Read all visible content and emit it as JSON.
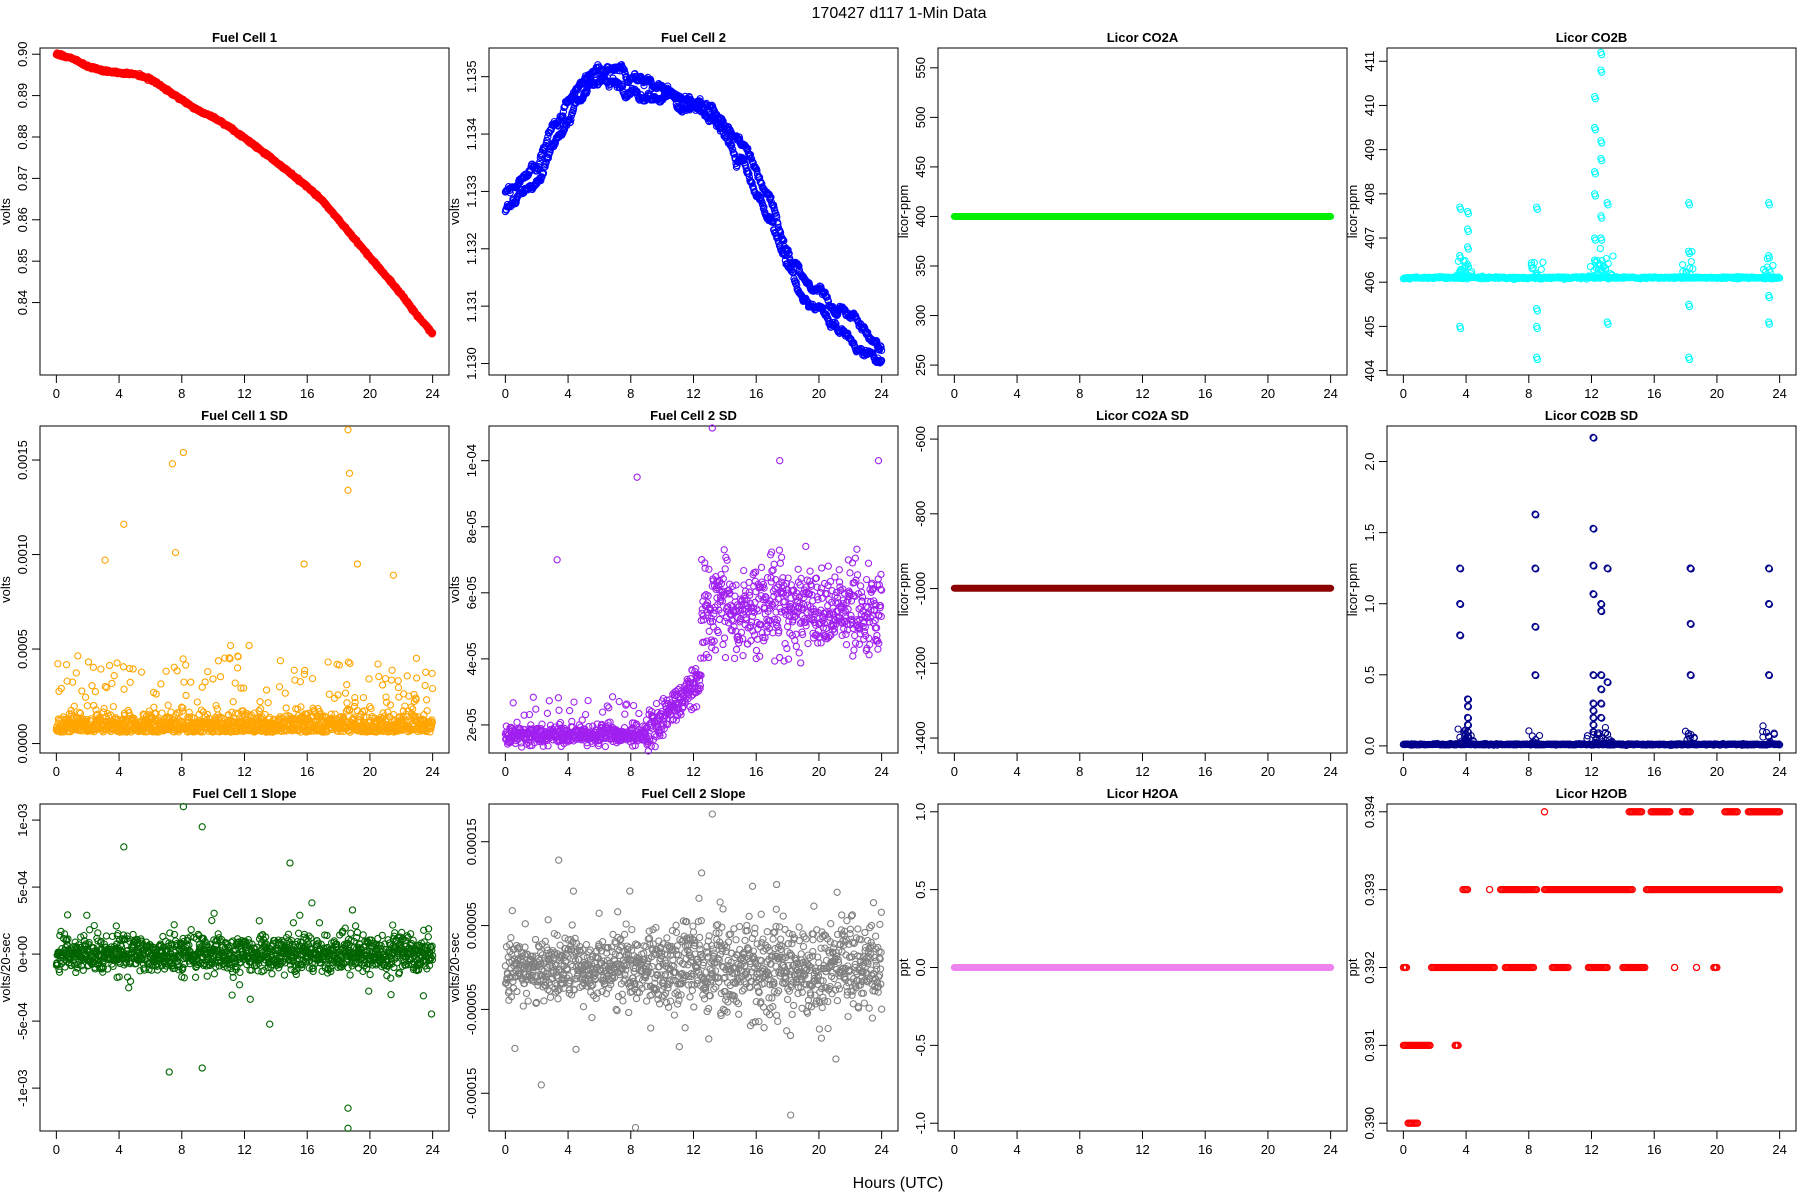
{
  "title": "170427   d117   1-Min Data",
  "xlabel": "Hours (UTC)",
  "chart_data": [
    {
      "type": "line",
      "title": "Fuel Cell 1",
      "ylabel": "volts",
      "color": "#ff0000",
      "xlim": [
        0,
        24
      ],
      "ylim": [
        0.8225,
        0.9015
      ],
      "xticks": [
        0,
        4,
        8,
        12,
        16,
        20,
        24
      ],
      "yticks": [
        0.84,
        0.85,
        0.86,
        0.87,
        0.88,
        0.89,
        0.9
      ],
      "ytick_labels": [
        "0.84",
        "0.85",
        "0.86",
        "0.87",
        "0.88",
        "0.89",
        "0.90"
      ],
      "series": [
        {
          "x": [
            0,
            1,
            2,
            3,
            4,
            5,
            6,
            7,
            8,
            9,
            10,
            11,
            12,
            13,
            14,
            15,
            16,
            17,
            18,
            19,
            20,
            21,
            22,
            23,
            24
          ],
          "y": [
            0.9,
            0.899,
            0.897,
            0.896,
            0.8955,
            0.8952,
            0.894,
            0.8915,
            0.889,
            0.8865,
            0.8848,
            0.8825,
            0.8797,
            0.877,
            0.874,
            0.871,
            0.868,
            0.8645,
            0.86,
            0.8555,
            0.851,
            0.8465,
            0.842,
            0.837,
            0.8325
          ]
        }
      ]
    },
    {
      "type": "line",
      "title": "Fuel Cell 2",
      "ylabel": "volts",
      "color": "#0000ff",
      "xlim": [
        0,
        24
      ],
      "ylim": [
        1.1298,
        1.1355
      ],
      "xticks": [
        0,
        4,
        8,
        12,
        16,
        20,
        24
      ],
      "yticks": [
        1.13,
        1.131,
        1.132,
        1.133,
        1.134,
        1.135
      ],
      "ytick_labels": [
        "1.130",
        "1.131",
        "1.132",
        "1.133",
        "1.134",
        "1.135"
      ],
      "series": [
        {
          "x": [
            0,
            1,
            2,
            3,
            4,
            5,
            6,
            7,
            8,
            9,
            10,
            11,
            12,
            13,
            14,
            15,
            16,
            17,
            18,
            19,
            20,
            21,
            22,
            23,
            24
          ],
          "y": [
            1.133,
            1.1332,
            1.1335,
            1.134,
            1.1345,
            1.1349,
            1.1353,
            1.1352,
            1.135,
            1.1349,
            1.1348,
            1.1346,
            1.1347,
            1.1346,
            1.1342,
            1.1338,
            1.1333,
            1.1327,
            1.132,
            1.1315,
            1.1313,
            1.131,
            1.1308,
            1.1306,
            1.1302
          ]
        },
        {
          "x": [
            0,
            1,
            2,
            3,
            4,
            5,
            6,
            7,
            8,
            9,
            10,
            11,
            12,
            13,
            14,
            15,
            16,
            17,
            18,
            19,
            20,
            21,
            22,
            23,
            24
          ],
          "y": [
            1.1327,
            1.1329,
            1.1332,
            1.1337,
            1.1342,
            1.1346,
            1.135,
            1.1349,
            1.1348,
            1.1347,
            1.1346,
            1.1344,
            1.1344,
            1.1343,
            1.1339,
            1.1335,
            1.133,
            1.1324,
            1.1317,
            1.1312,
            1.131,
            1.1307,
            1.1305,
            1.1302,
            1.13
          ]
        }
      ]
    },
    {
      "type": "line",
      "title": "Licor CO2A",
      "ylabel": "licor-ppm",
      "color": "#00ee00",
      "xlim": [
        0,
        24
      ],
      "ylim": [
        240,
        570
      ],
      "xticks": [
        0,
        4,
        8,
        12,
        16,
        20,
        24
      ],
      "yticks": [
        250,
        300,
        350,
        400,
        450,
        500,
        550
      ],
      "ytick_labels": [
        "250",
        "300",
        "350",
        "400",
        "450",
        "500",
        "550"
      ],
      "series": [
        {
          "x": [
            0,
            24
          ],
          "y": [
            400,
            400
          ]
        }
      ]
    },
    {
      "type": "scatter",
      "title": "Licor CO2B",
      "ylabel": "licor-ppm",
      "color": "#00ffff",
      "xlim": [
        0,
        24
      ],
      "ylim": [
        403.9,
        411.3
      ],
      "xticks": [
        0,
        4,
        8,
        12,
        16,
        20,
        24
      ],
      "yticks": [
        404,
        405,
        406,
        407,
        408,
        409,
        410,
        411
      ],
      "ytick_labels": [
        "404",
        "405",
        "406",
        "407",
        "408",
        "409",
        "410",
        "411"
      ],
      "baseline": 406.1,
      "spikes": [
        {
          "x": 3.6,
          "values": [
            407.7,
            406.6,
            405.0
          ]
        },
        {
          "x": 4.1,
          "values": [
            407.6,
            407.2,
            406.8,
            406.4
          ]
        },
        {
          "x": 8.5,
          "values": [
            407.7,
            405.4,
            405.0,
            404.3,
            406.2
          ]
        },
        {
          "x": 12.2,
          "values": [
            410.2,
            409.5,
            408.5,
            408.0,
            407.0,
            406.5
          ]
        },
        {
          "x": 12.6,
          "values": [
            411.2,
            410.8,
            409.2,
            408.8,
            407.5,
            407.0
          ]
        },
        {
          "x": 13.0,
          "values": [
            407.8,
            405.1
          ]
        },
        {
          "x": 18.2,
          "values": [
            407.8,
            406.7,
            405.5,
            404.3
          ]
        },
        {
          "x": 23.3,
          "values": [
            407.8,
            406.6,
            405.7,
            405.1
          ]
        }
      ]
    },
    {
      "type": "scatter",
      "title": "Fuel Cell 1 SD",
      "ylabel": "volts",
      "color": "#ffa500",
      "xlim": [
        0,
        24
      ],
      "ylim": [
        -5e-05,
        0.00168
      ],
      "xticks": [
        0,
        4,
        8,
        12,
        16,
        20,
        24
      ],
      "yticks": [
        0,
        0.0005,
        0.001,
        0.0015
      ],
      "ytick_labels": [
        "0.0000",
        "0.0005",
        "0.0010",
        "0.0015"
      ],
      "outliers": [
        {
          "x": 18.6,
          "y": 0.00166
        },
        {
          "x": 18.7,
          "y": 0.00143
        },
        {
          "x": 18.6,
          "y": 0.00134
        },
        {
          "x": 8.1,
          "y": 0.00154
        },
        {
          "x": 7.4,
          "y": 0.00148
        },
        {
          "x": 4.3,
          "y": 0.00116
        },
        {
          "x": 7.6,
          "y": 0.00101
        },
        {
          "x": 3.1,
          "y": 0.00097
        },
        {
          "x": 19.2,
          "y": 0.00095
        },
        {
          "x": 15.8,
          "y": 0.00095
        },
        {
          "x": 21.5,
          "y": 0.00089
        }
      ]
    },
    {
      "type": "scatter",
      "title": "Fuel Cell 2 SD",
      "ylabel": "volts",
      "color": "#a020f0",
      "xlim": [
        0,
        24
      ],
      "ylim": [
        1.15e-05,
        0.0001105
      ],
      "xticks": [
        0,
        4,
        8,
        12,
        16,
        20,
        24
      ],
      "yticks": [
        2e-05,
        4e-05,
        6e-05,
        8e-05,
        0.0001
      ],
      "ytick_labels": [
        "2e-05",
        "4e-05",
        "6e-05",
        "8e-05",
        "1e-04"
      ],
      "outliers": [
        {
          "x": 13.2,
          "y": 0.00011
        },
        {
          "x": 3.3,
          "y": 7e-05
        },
        {
          "x": 8.4,
          "y": 9.5e-05
        },
        {
          "x": 23.8,
          "y": 0.0001
        },
        {
          "x": 17.5,
          "y": 0.0001
        }
      ]
    },
    {
      "type": "line",
      "title": "Licor CO2A SD",
      "ylabel": "licor-ppm",
      "color": "#8b0000",
      "xlim": [
        0,
        24
      ],
      "ylim": [
        -1440,
        -565
      ],
      "xticks": [
        0,
        4,
        8,
        12,
        16,
        20,
        24
      ],
      "yticks": [
        -1400,
        -1200,
        -1000,
        -800,
        -600
      ],
      "ytick_labels": [
        "-1400",
        "-1200",
        "-1000",
        "-800",
        "-600"
      ],
      "series": [
        {
          "x": [
            0,
            24
          ],
          "y": [
            -999,
            -999
          ]
        }
      ]
    },
    {
      "type": "scatter",
      "title": "Licor CO2B SD",
      "ylabel": "licor-ppm",
      "color": "#00008b",
      "xlim": [
        0,
        24
      ],
      "ylim": [
        -0.05,
        2.25
      ],
      "xticks": [
        0,
        4,
        8,
        12,
        16,
        20,
        24
      ],
      "yticks": [
        0,
        0.5,
        1.0,
        1.5,
        2.0
      ],
      "ytick_labels": [
        "0.0",
        "0.5",
        "1.0",
        "1.5",
        "2.0"
      ],
      "baseline": 0.01,
      "spikes": [
        {
          "x": 3.6,
          "values": [
            1.25,
            1.0,
            0.78
          ]
        },
        {
          "x": 4.1,
          "values": [
            0.33,
            0.28,
            0.2,
            0.15,
            0.1,
            0.06
          ]
        },
        {
          "x": 8.4,
          "values": [
            1.63,
            1.25,
            0.84,
            0.5
          ]
        },
        {
          "x": 12.1,
          "values": [
            2.17,
            1.53,
            1.27,
            1.07,
            0.5,
            0.3,
            0.25,
            0.2,
            0.15,
            0.1
          ]
        },
        {
          "x": 12.6,
          "values": [
            1.0,
            0.95,
            0.5,
            0.4,
            0.3,
            0.2
          ]
        },
        {
          "x": 13.0,
          "values": [
            1.25,
            0.45
          ]
        },
        {
          "x": 18.3,
          "values": [
            1.25,
            1.25,
            0.86,
            0.5
          ]
        },
        {
          "x": 23.3,
          "values": [
            1.25,
            1.0,
            0.5
          ]
        }
      ]
    },
    {
      "type": "scatter",
      "title": "Fuel Cell 1 Slope",
      "ylabel": "volts/20-sec",
      "color": "#006400",
      "xlim": [
        0,
        24
      ],
      "ylim": [
        -0.00132,
        0.00112
      ],
      "xticks": [
        0,
        4,
        8,
        12,
        16,
        20,
        24
      ],
      "yticks": [
        -0.001,
        -0.0005,
        0,
        0.0005,
        0.001
      ],
      "ytick_labels": [
        "-1e-03",
        "-5e-04",
        "0e+00",
        "5e-04",
        "1e-03"
      ],
      "outliers": [
        {
          "x": 8.1,
          "y": 0.0011
        },
        {
          "x": 9.3,
          "y": 0.00095
        },
        {
          "x": 7.2,
          "y": -0.00088
        },
        {
          "x": 9.3,
          "y": -0.00085
        },
        {
          "x": 18.6,
          "y": -0.00115
        },
        {
          "x": 18.6,
          "y": -0.0013
        },
        {
          "x": 4.3,
          "y": 0.0008
        },
        {
          "x": 14.9,
          "y": 0.00068
        }
      ]
    },
    {
      "type": "scatter",
      "title": "Fuel Cell 2 Slope",
      "ylabel": "volts/20-sec",
      "color": "#808080",
      "xlim": [
        0,
        24
      ],
      "ylim": [
        -0.000195,
        0.000195
      ],
      "xticks": [
        0,
        4,
        8,
        12,
        16,
        20,
        24
      ],
      "yticks": [
        -0.00015,
        -5e-05,
        5e-05,
        0.00015
      ],
      "ytick_labels": [
        "-0.00015",
        "-0.00005",
        "0.00005",
        "0.00015"
      ],
      "outliers": [
        {
          "x": 13.2,
          "y": 0.000183
        },
        {
          "x": 3.4,
          "y": 0.000128
        },
        {
          "x": 8.3,
          "y": -0.000191
        },
        {
          "x": 18.2,
          "y": -0.000176
        },
        {
          "x": 17.3,
          "y": 9.9e-05
        }
      ]
    },
    {
      "type": "line",
      "title": "Licor H2OA",
      "ylabel": "ppt",
      "color": "#ee82ee",
      "xlim": [
        0,
        24
      ],
      "ylim": [
        -1.05,
        1.05
      ],
      "xticks": [
        0,
        4,
        8,
        12,
        16,
        20,
        24
      ],
      "yticks": [
        -1.0,
        -0.5,
        0,
        0.5,
        1.0
      ],
      "ytick_labels": [
        "-1.0",
        "-0.5",
        "0.0",
        "0.5",
        "1.0"
      ],
      "series": [
        {
          "x": [
            0,
            24
          ],
          "y": [
            0,
            0
          ]
        }
      ]
    },
    {
      "type": "scatter",
      "title": "Licor H2OB",
      "ylabel": "ppt",
      "color": "#ff0000",
      "xlim": [
        0,
        24
      ],
      "ylim": [
        0.3899,
        0.3941
      ],
      "xticks": [
        0,
        4,
        8,
        12,
        16,
        20,
        24
      ],
      "yticks": [
        0.39,
        0.391,
        0.392,
        0.393,
        0.394
      ],
      "ytick_labels": [
        "0.390",
        "0.391",
        "0.392",
        "0.393",
        "0.394"
      ],
      "levels": [
        {
          "y": 0.39,
          "ranges": [
            [
              0.3,
              0.9
            ]
          ]
        },
        {
          "y": 0.391,
          "ranges": [
            [
              0,
              1.7
            ],
            [
              3.3,
              3.5
            ]
          ]
        },
        {
          "y": 0.392,
          "ranges": [
            [
              0,
              0.2
            ],
            [
              1.8,
              5.8
            ],
            [
              6.5,
              8.3
            ],
            [
              9.5,
              10.5
            ],
            [
              11.8,
              13.0
            ],
            [
              14.0,
              15.4
            ],
            [
              17.3,
              17.3
            ],
            [
              18.7,
              18.7
            ],
            [
              19.8,
              20.0
            ]
          ]
        },
        {
          "y": 0.393,
          "ranges": [
            [
              3.8,
              4.1
            ],
            [
              5.5,
              5.5
            ],
            [
              6.2,
              8.5
            ],
            [
              9.0,
              14.6
            ],
            [
              15.5,
              24.0
            ]
          ]
        },
        {
          "y": 0.394,
          "ranges": [
            [
              9.0,
              9.0
            ],
            [
              14.4,
              15.2
            ],
            [
              15.8,
              17.0
            ],
            [
              17.8,
              18.3
            ],
            [
              20.5,
              21.3
            ],
            [
              22.0,
              24.0
            ]
          ]
        }
      ]
    }
  ]
}
